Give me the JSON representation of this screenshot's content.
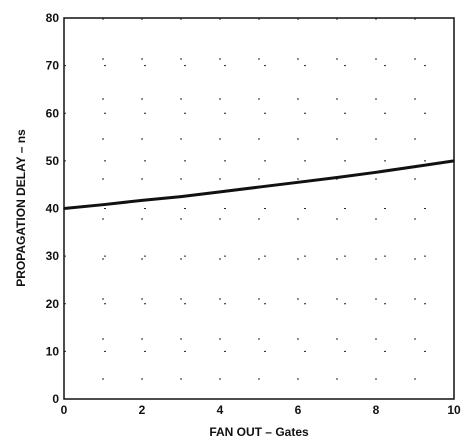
{
  "chart_data": {
    "type": "line",
    "title": "",
    "xlabel": "FAN OUT  – Gates",
    "ylabel": "PROPAGATION DELAY – ns",
    "xlim": [
      0,
      10
    ],
    "ylim": [
      0,
      80
    ],
    "xticks": [
      0,
      2,
      4,
      6,
      8,
      10
    ],
    "yticks": [
      0,
      10,
      20,
      30,
      40,
      50,
      60,
      70,
      80
    ],
    "grid": true,
    "series": [
      {
        "x": [
          0,
          1,
          2,
          3,
          4,
          5,
          6,
          7,
          8,
          9,
          10
        ],
        "values": [
          40.0,
          40.8,
          41.7,
          42.5,
          43.5,
          44.5,
          45.5,
          46.5,
          47.6,
          48.8,
          50.0
        ]
      }
    ]
  }
}
